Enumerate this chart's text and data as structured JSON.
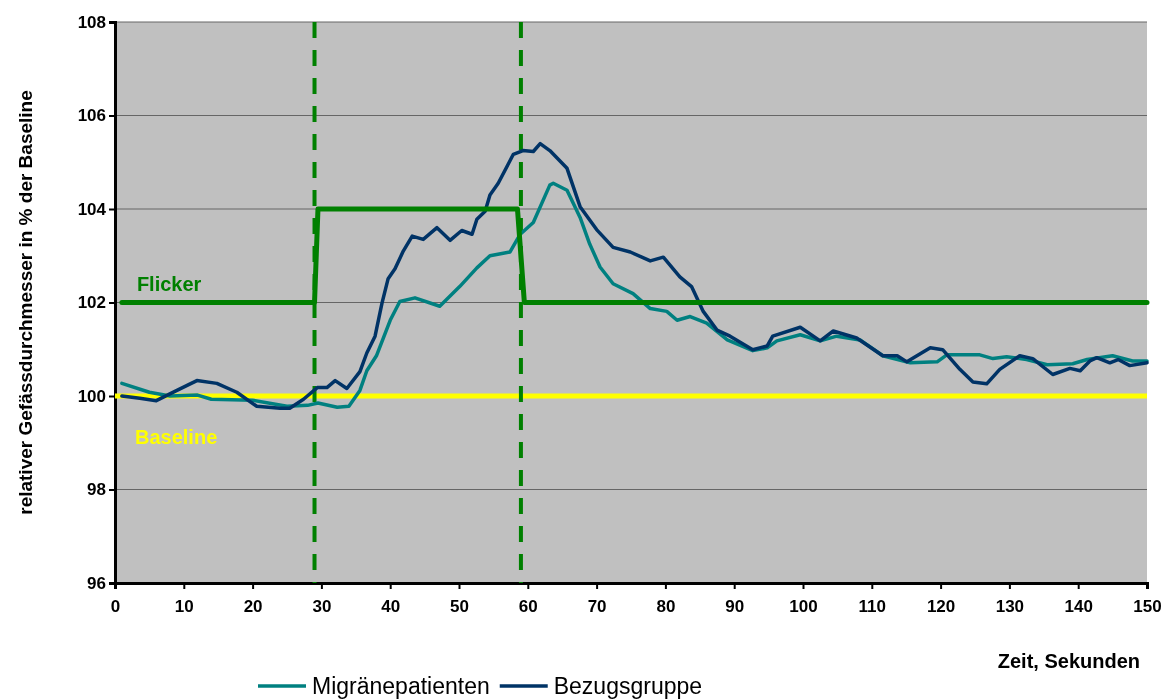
{
  "chart_data": {
    "type": "line",
    "xlabel": "Zeit, Sekunden",
    "ylabel": "relativer Gefässdurchmesser in % der Baseline",
    "xlim": [
      0,
      150
    ],
    "xticks": [
      0,
      10,
      20,
      30,
      40,
      50,
      60,
      70,
      80,
      90,
      100,
      110,
      120,
      130,
      140,
      150
    ],
    "ylim": [
      96,
      108
    ],
    "yticks": [
      96,
      98,
      100,
      102,
      104,
      106,
      108
    ],
    "grid": "y",
    "legend": "bottom",
    "line_style": "solid",
    "marker": "none",
    "series": [
      {
        "name": "Migränepatienten",
        "color": "#008080",
        "x": [
          1,
          5,
          8,
          12,
          14,
          20,
          25,
          28,
          29.5,
          32.3,
          34,
          35.6,
          36.6,
          38,
          40,
          41.4,
          43.6,
          47.2,
          50.1,
          52.6,
          54.5,
          57.4,
          58.9,
          60.8,
          63.2,
          63.7,
          65.7,
          67.6,
          69,
          70.5,
          72.4,
          75.3,
          77.8,
          80.2,
          81.7,
          83.6,
          86,
          89,
          92.7,
          94.8,
          96.2,
          99.6,
          102.5,
          104.9,
          108.3,
          111.6,
          115.6,
          119.5,
          120.9,
          125.7,
          127.6,
          129.6,
          132.5,
          135.5,
          139.2,
          141.3,
          145,
          147.9,
          150
        ],
        "values": [
          100.27,
          100.08,
          100,
          100.02,
          99.93,
          99.91,
          99.78,
          99.8,
          99.85,
          99.76,
          99.78,
          100.12,
          100.54,
          100.86,
          101.62,
          102.02,
          102.1,
          101.92,
          102.34,
          102.74,
          103,
          103.08,
          103.46,
          103.71,
          104.51,
          104.55,
          104.4,
          103.82,
          103.25,
          102.76,
          102.4,
          102.19,
          101.87,
          101.81,
          101.62,
          101.7,
          101.56,
          101.2,
          100.97,
          101.03,
          101.18,
          101.31,
          101.18,
          101.28,
          101.2,
          100.86,
          100.71,
          100.73,
          100.88,
          100.88,
          100.8,
          100.84,
          100.78,
          100.67,
          100.69,
          100.78,
          100.86,
          100.75,
          100.75
        ]
      },
      {
        "name": "Bezugsgruppe",
        "color": "#003366",
        "x": [
          1,
          3.6,
          6,
          9,
          11.9,
          14.8,
          17.7,
          20.6,
          24,
          25.4,
          27.4,
          29.4,
          30.8,
          32,
          33.7,
          35.6,
          36.6,
          37.8,
          38.8,
          39.7,
          40.7,
          41.9,
          43.2,
          44.8,
          46.8,
          48.7,
          50.4,
          51.9,
          52.6,
          53.8,
          54.5,
          55.7,
          57.9,
          59.3,
          60.8,
          61.8,
          63.2,
          65.7,
          67.6,
          70,
          72.4,
          74.9,
          77.8,
          79.7,
          82.1,
          83.8,
          85.5,
          87.5,
          89.4,
          92.7,
          94.8,
          95.6,
          99.6,
          102.5,
          104.4,
          107.8,
          111.6,
          113.7,
          115.1,
          118.5,
          120.3,
          122.8,
          124.7,
          126.7,
          128.6,
          131.5,
          133.4,
          136.3,
          138.8,
          140.3,
          141.7,
          142.7,
          144.6,
          145.8,
          147.5,
          150
        ],
        "values": [
          100,
          99.95,
          99.9,
          100.12,
          100.33,
          100.27,
          100.08,
          99.78,
          99.74,
          99.74,
          99.93,
          100.18,
          100.18,
          100.33,
          100.16,
          100.52,
          100.92,
          101.28,
          101.98,
          102.51,
          102.72,
          103.1,
          103.42,
          103.35,
          103.6,
          103.33,
          103.54,
          103.46,
          103.78,
          103.95,
          104.3,
          104.55,
          105.17,
          105.25,
          105.23,
          105.4,
          105.25,
          104.87,
          104.05,
          103.56,
          103.18,
          103.08,
          102.89,
          102.97,
          102.55,
          102.34,
          101.81,
          101.41,
          101.28,
          100.99,
          101.07,
          101.28,
          101.47,
          101.18,
          101.39,
          101.24,
          100.86,
          100.86,
          100.73,
          101.03,
          100.99,
          100.57,
          100.3,
          100.26,
          100.57,
          100.86,
          100.8,
          100.46,
          100.59,
          100.54,
          100.75,
          100.82,
          100.71,
          100.78,
          100.65,
          100.71
        ]
      },
      {
        "name": "Flicker",
        "color": "#008000",
        "x": [
          1,
          29,
          29.5,
          58.5,
          59.5,
          150
        ],
        "values": [
          102,
          102,
          104,
          104,
          102,
          102
        ]
      }
    ],
    "ref_lines": [
      {
        "axis": "y",
        "value": 100,
        "label": "Baseline",
        "color": "#ffff00",
        "line_style": "solid"
      },
      {
        "axis": "x",
        "value": 29,
        "label": null,
        "color": "#008000",
        "line_style": "dashed"
      },
      {
        "axis": "x",
        "value": 59,
        "label": null,
        "color": "#008000",
        "line_style": "dashed"
      }
    ]
  }
}
